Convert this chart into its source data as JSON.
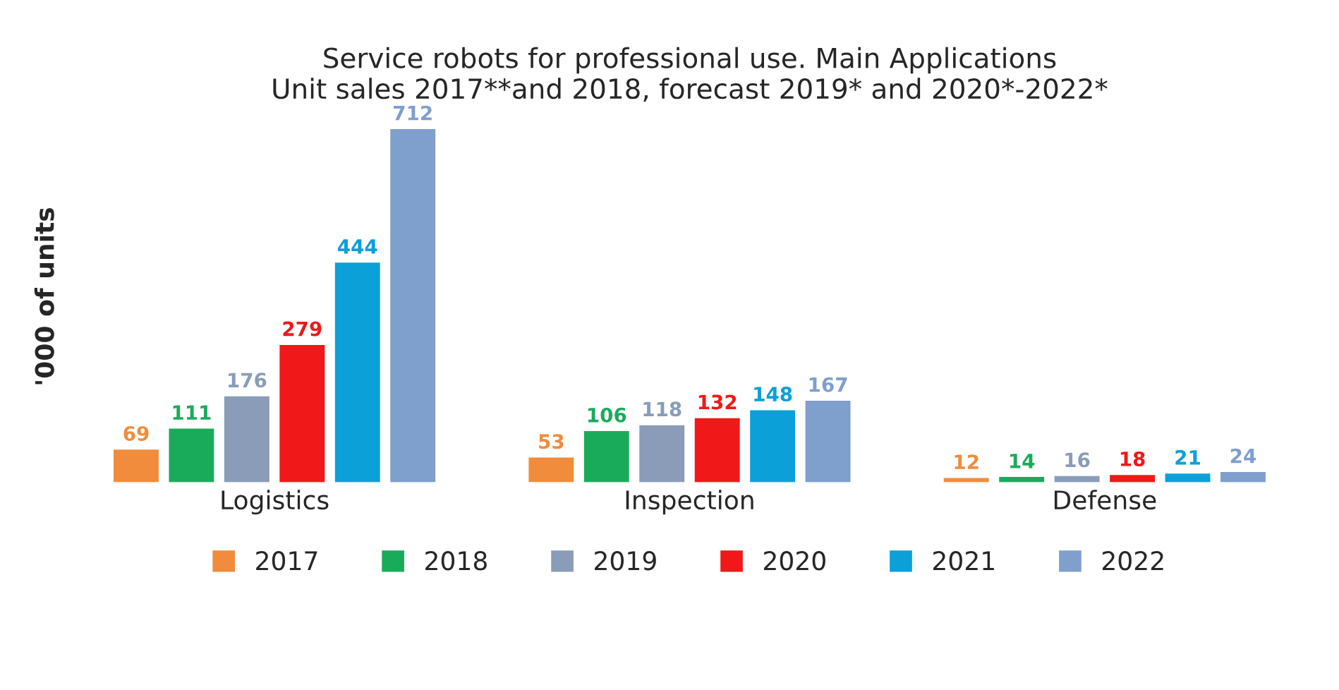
{
  "chart_data": {
    "type": "bar",
    "title": "Service robots for professional use. Main Applications\nUnit sales 2017**and 2018, forecast 2019* and 2020*-2022*",
    "ylabel": "'000 of units",
    "categories": [
      "Logistics",
      "Inspection",
      "Defense"
    ],
    "series": [
      {
        "name": "2017",
        "color": "#f08c3c",
        "values": [
          69,
          53,
          12
        ]
      },
      {
        "name": "2018",
        "color": "#1aab5a",
        "values": [
          111,
          106,
          14
        ]
      },
      {
        "name": "2019",
        "color": "#8a9cb8",
        "values": [
          176,
          118,
          16
        ]
      },
      {
        "name": "2020",
        "color": "#f01818",
        "values": [
          279,
          132,
          18
        ]
      },
      {
        "name": "2021",
        "color": "#0ba0d8",
        "values": [
          444,
          148,
          21
        ]
      },
      {
        "name": "2022",
        "color": "#7f9fcc",
        "values": [
          712,
          167,
          24
        ]
      }
    ],
    "data_labels": true,
    "legend": "bottom",
    "grid": false
  }
}
